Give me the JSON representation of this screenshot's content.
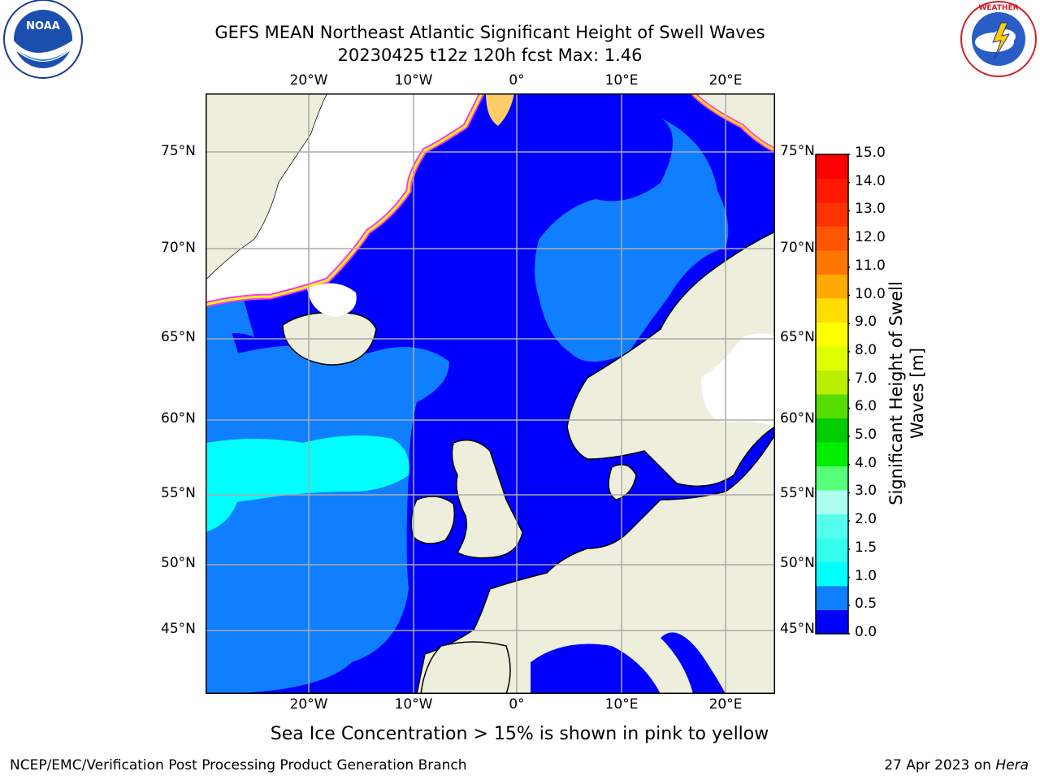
{
  "title": {
    "line1": "GEFS MEAN Northeast Atlantic Significant Height of Swell Waves",
    "line2": "20230425 t12z 120h fcst   Max: 1.46"
  },
  "logos": {
    "noaa_text": "NOAA",
    "noaa_ring": "NATIONAL OCEANIC AND ATMOSPHERIC ADMINISTRATION · U.S. DEPARTMENT OF COMMERCE",
    "nws_ring": "NATIONAL WEATHER SERVICE"
  },
  "map": {
    "lon_labels": [
      "20°W",
      "10°W",
      "0°",
      "10°E",
      "20°E"
    ],
    "lat_labels": [
      "75°N",
      "70°N",
      "65°N",
      "60°N",
      "55°N",
      "50°N",
      "45°N"
    ],
    "colors": {
      "sea_low": "#0000ff",
      "sea_mid": "#0f7fff",
      "sea_high": "#00ffff",
      "land": "#eeeedd",
      "ice_low": "#ff33ff",
      "ice_high": "#ffff00",
      "grid": "#aaaaaa"
    }
  },
  "colorbar": {
    "label": "Significant Height of Swell Waves [m]",
    "ticks": [
      "15.0",
      "14.0",
      "13.0",
      "12.0",
      "11.0",
      "10.0",
      "9.0",
      "8.0",
      "7.0",
      "6.0",
      "5.0",
      "4.0",
      "3.0",
      "2.0",
      "1.5",
      "1.0",
      "0.5",
      "0.0"
    ],
    "segments": [
      "#0000ff",
      "#0f7fff",
      "#00ffff",
      "#33ffee",
      "#55ffee",
      "#aaffee",
      "#55ff77",
      "#00ee00",
      "#00cc00",
      "#55dd00",
      "#bbee00",
      "#ddff00",
      "#ffff00",
      "#ffdd00",
      "#ffaa00",
      "#ff7700",
      "#ff5500",
      "#ff3300",
      "#ff1a00",
      "#ff0000"
    ]
  },
  "caption": "Sea Ice Concentration > 15% is shown in pink to yellow",
  "footer": {
    "left": "NCEP/EMC/Verification Post Processing Product Generation Branch",
    "right_date": "27 Apr 2023 on ",
    "right_host": "Hera"
  }
}
